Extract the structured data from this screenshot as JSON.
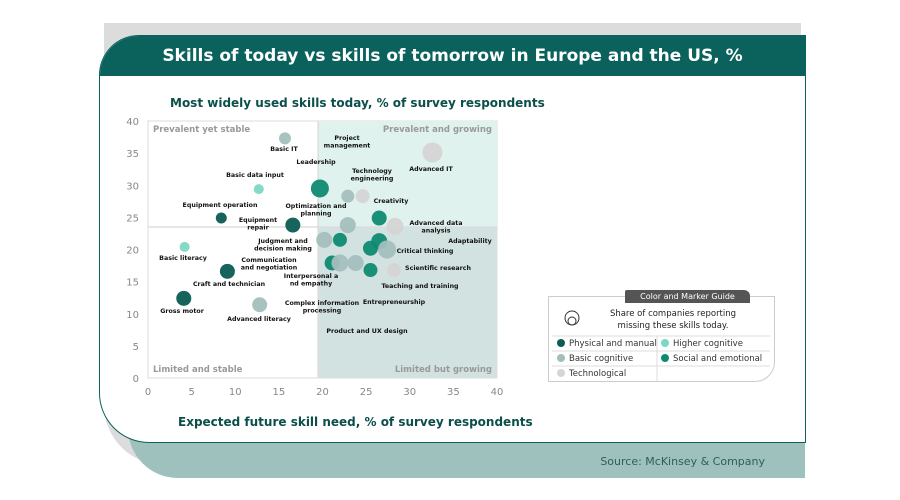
{
  "source": "Source: McKinsey & Company",
  "chart_data": {
    "type": "scatter",
    "title": "Skills of today vs skills of tomorrow in Europe and the US, %",
    "ylabel": "Most widely used skills today, % of survey respondents",
    "xlabel": "Expected future skill need, % of survey respondents",
    "xlim": [
      0,
      40
    ],
    "ylim": [
      0,
      40
    ],
    "xticks": [
      "0",
      "5",
      "10",
      "15",
      "20",
      "25",
      "30",
      "35",
      "40"
    ],
    "yticks": [
      "0",
      "5",
      "10",
      "15",
      "20",
      "25",
      "30",
      "35",
      "40"
    ],
    "quadrants": {
      "top_left": "Prevalent yet stable",
      "top_right": "Prevalent and growing",
      "bottom_left": "Limited and stable",
      "bottom_right": "Limited but growing"
    },
    "quadrant_split": {
      "x": 19.5,
      "y": 23.5
    },
    "quadrant_colors": {
      "top_right": "#dff2ee",
      "bottom_right": "#d2e2e0"
    },
    "categories": {
      "physical": {
        "name": "Physical and manual",
        "color": "#0b5c53"
      },
      "higher": {
        "name": "Higher cognitive",
        "color": "#7dd8c3"
      },
      "basic": {
        "name": "Basic cognitive",
        "color": "#a3bfbd"
      },
      "social": {
        "name": "Social and emotional",
        "color": "#0f8a72"
      },
      "tech": {
        "name": "Technological",
        "color": "#d6d4d5"
      }
    },
    "size_legend": "Share of companies reporting missing these skills today.",
    "legend_title": "Color and Marker Guide",
    "points": [
      {
        "label": "Basic IT",
        "x": 15.7,
        "y": 37.3,
        "cat": "basic",
        "size": 6
      },
      {
        "label": "Advanced IT",
        "x": 32.6,
        "y": 35.1,
        "cat": "tech",
        "size": 10
      },
      {
        "label": "Basic data input",
        "x": 12.7,
        "y": 29.4,
        "cat": "higher",
        "size": 5
      },
      {
        "label": "Leadership",
        "x": 19.7,
        "y": 29.5,
        "cat": "social",
        "size": 9
      },
      {
        "label": "Project management",
        "x": 22.9,
        "y": 28.3,
        "cat": "basic",
        "size": 6.5
      },
      {
        "label": "Technology engineering",
        "x": 24.6,
        "y": 28.3,
        "cat": "tech",
        "size": 7
      },
      {
        "label": "Equipment operation",
        "x": 8.4,
        "y": 24.9,
        "cat": "physical",
        "size": 5.5
      },
      {
        "label": "Equipment repair",
        "x": 16.6,
        "y": 23.8,
        "cat": "physical",
        "size": 7.5
      },
      {
        "label": "Optimization and planning",
        "x": 22.9,
        "y": 23.8,
        "cat": "basic",
        "size": 8
      },
      {
        "label": "Creativity",
        "x": 26.5,
        "y": 24.9,
        "cat": "social",
        "size": 7.5
      },
      {
        "label": "Advanced data analysis",
        "x": 28.3,
        "y": 23.6,
        "cat": "tech",
        "size": 8.5
      },
      {
        "label": "Basic literacy",
        "x": 4.2,
        "y": 20.4,
        "cat": "higher",
        "size": 5
      },
      {
        "label": "Judgment and decision making",
        "x": 20.2,
        "y": 21.5,
        "cat": "basic",
        "size": 8
      },
      {
        "label": "Communication and negotiation",
        "x": 22.0,
        "y": 21.5,
        "cat": "social",
        "size": 7
      },
      {
        "label": "Adaptability",
        "x": 26.5,
        "y": 21.3,
        "cat": "social",
        "size": 8
      },
      {
        "label": "Critical thinking",
        "x": 27.4,
        "y": 20.0,
        "cat": "basic",
        "size": 9
      },
      {
        "label": "Teaching and training",
        "x": 25.5,
        "y": 20.2,
        "cat": "social",
        "size": 7.5
      },
      {
        "label": "Craft and technician",
        "x": 9.1,
        "y": 16.6,
        "cat": "physical",
        "size": 7.5
      },
      {
        "label": "Interpersonal a nd empathy",
        "x": 21.1,
        "y": 17.9,
        "cat": "social",
        "size": 7.5
      },
      {
        "label": "Complex information processing",
        "x": 22.0,
        "y": 17.9,
        "cat": "basic",
        "size": 8.5
      },
      {
        "label": "Product and UX design",
        "x": 23.8,
        "y": 17.9,
        "cat": "basic",
        "size": 8
      },
      {
        "label": "Entrepreneurship",
        "x": 25.5,
        "y": 16.8,
        "cat": "social",
        "size": 7
      },
      {
        "label": "Scientific research",
        "x": 28.2,
        "y": 16.8,
        "cat": "tech",
        "size": 7
      },
      {
        "label": "Gross motor",
        "x": 4.1,
        "y": 12.4,
        "cat": "physical",
        "size": 7.5
      },
      {
        "label": "Advanced literacy",
        "x": 12.8,
        "y": 11.4,
        "cat": "basic",
        "size": 7.5
      }
    ]
  }
}
